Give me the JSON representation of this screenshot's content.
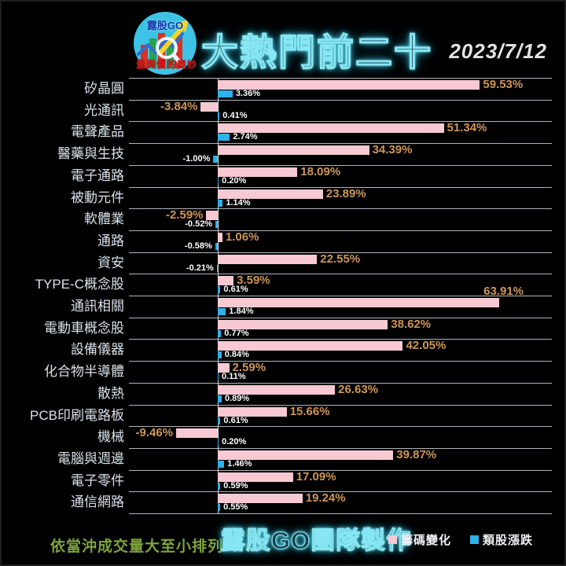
{
  "header": {
    "logo": {
      "brand": "露股GO",
      "tagline": "量與價的奧妙",
      "icon": "bar-chart-magnifier-arrow-logo"
    },
    "title": "大熱門前二十",
    "date": "2023/7/12"
  },
  "chart_data": {
    "type": "bar",
    "orientation": "horizontal",
    "unit": "%",
    "value_format": "0.00%",
    "grid": "row-separators",
    "axis": {
      "zero_line": true,
      "xlim": [
        -20,
        76
      ]
    },
    "legend_position": "bottom-right",
    "categories": [
      "矽晶圓",
      "光通訊",
      "電聲產品",
      "醫藥與生技",
      "電子通路",
      "被動元件",
      "軟體業",
      "通路",
      "資安",
      "TYPE-C概念股",
      "通訊相關",
      "電動車概念股",
      "設備儀器",
      "化合物半導體",
      "散熱",
      "PCB印刷電路板",
      "機械",
      "電腦與週邊",
      "電子零件",
      "通信網路"
    ],
    "series": [
      {
        "name": "籌碼變化",
        "color": "#f7c9d3",
        "values": [
          59.53,
          -3.84,
          51.34,
          34.39,
          18.09,
          23.89,
          -2.59,
          1.06,
          22.55,
          3.59,
          63.91,
          38.62,
          42.05,
          2.59,
          26.63,
          15.66,
          -9.46,
          39.87,
          17.09,
          19.24
        ]
      },
      {
        "name": "類股漲跌",
        "color": "#2fb1ea",
        "values": [
          3.36,
          0.41,
          2.74,
          -1.0,
          0.2,
          1.14,
          -0.52,
          -0.58,
          -0.21,
          0.61,
          1.84,
          0.77,
          0.84,
          0.11,
          0.89,
          0.61,
          0.2,
          1.46,
          0.59,
          0.55
        ]
      }
    ],
    "label_above_indices": [
      10
    ]
  },
  "footer": {
    "note": "依當沖成交量大至小排列",
    "credit": "露股GO團隊製作",
    "legend": [
      {
        "label": "籌碼變化",
        "color": "#f7c9d3"
      },
      {
        "label": "類股漲跌",
        "color": "#2fb1ea"
      }
    ]
  },
  "colors": {
    "background": "#000000",
    "title_fill": "#173e4d",
    "title_glow": "#55d7ee",
    "category_label": "#d9e1ea",
    "pink_value_label": "#cd9558",
    "blue_value_label": "#ffffff",
    "separator": "#c3c9cf",
    "note_green": "#7da33e",
    "date_text": "#e2e2e2"
  }
}
